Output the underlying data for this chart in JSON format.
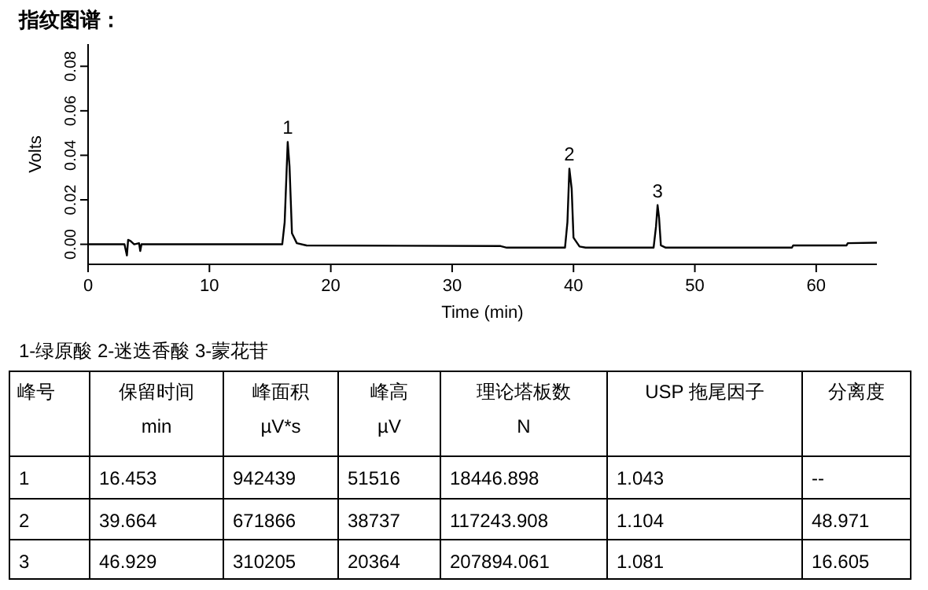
{
  "chart_data": [
    {
      "type": "line",
      "title": "指纹图谱：",
      "xlabel": "Time (min)",
      "ylabel": "Volts",
      "xlim": [
        0,
        65
      ],
      "xticks": [
        0,
        10,
        20,
        30,
        40,
        50,
        60
      ],
      "ylim": [
        -0.009,
        0.09
      ],
      "yticks": [
        {
          "value": 0,
          "label": "0.00"
        },
        {
          "value": 0.02,
          "label": "0.02"
        },
        {
          "value": 0.04,
          "label": "0.04"
        },
        {
          "value": 0.06,
          "label": "0.06"
        },
        {
          "value": 0.08,
          "label": "0.08"
        }
      ],
      "grid": false,
      "marker": "none",
      "line_style": "solid",
      "series": [
        {
          "color": "#000000",
          "x": [
            0,
            3.0,
            3.2,
            3.3,
            3.5,
            3.8,
            4.2,
            4.3,
            4.4,
            5,
            16.0,
            16.2,
            16.45,
            16.6,
            16.8,
            17.2,
            18,
            34,
            34.5,
            39.3,
            39.5,
            39.66,
            39.85,
            40.0,
            40.5,
            41,
            46.6,
            46.8,
            46.93,
            47.05,
            47.2,
            47.6,
            58,
            58.1,
            62.5,
            62.6,
            65
          ],
          "values": [
            0,
            0,
            -0.005,
            0.002,
            0.0015,
            0,
            0.0005,
            -0.003,
            0,
            0,
            0,
            0.01,
            0.046,
            0.035,
            0.005,
            0.0005,
            -0.0005,
            -0.0008,
            -0.0015,
            -0.0015,
            0.01,
            0.034,
            0.025,
            0.003,
            -0.001,
            -0.0015,
            -0.0015,
            0.008,
            0.0176,
            0.012,
            -0.0005,
            -0.0015,
            -0.0015,
            -0.0005,
            -0.0005,
            0.0005,
            0.0007
          ]
        }
      ],
      "annotations": [
        {
          "text": "1",
          "x": 16.45,
          "y": 0.046
        },
        {
          "text": "2",
          "x": 39.66,
          "y": 0.034
        },
        {
          "text": "3",
          "x": 46.93,
          "y": 0.0176
        }
      ]
    },
    {
      "type": "other",
      "title": "1-绿原酸 2-迷迭香酸 3-蒙花苷",
      "categories": [
        "峰号",
        "保留时间\nmin",
        "峰面积\nµV*s",
        "峰高\nµV",
        "理论塔板数\nN",
        "USP 拖尾因子",
        "分离度"
      ],
      "cell_labels": [
        [
          "1",
          "16.453",
          "942439",
          "51516",
          "18446.898",
          "1.043",
          "--"
        ],
        [
          "2",
          "39.664",
          "671866",
          "38737",
          "117243.908",
          "1.104",
          "48.971"
        ],
        [
          "3",
          "46.929",
          "310205",
          "20364",
          "207894.061",
          "1.081",
          "16.605"
        ]
      ]
    }
  ]
}
